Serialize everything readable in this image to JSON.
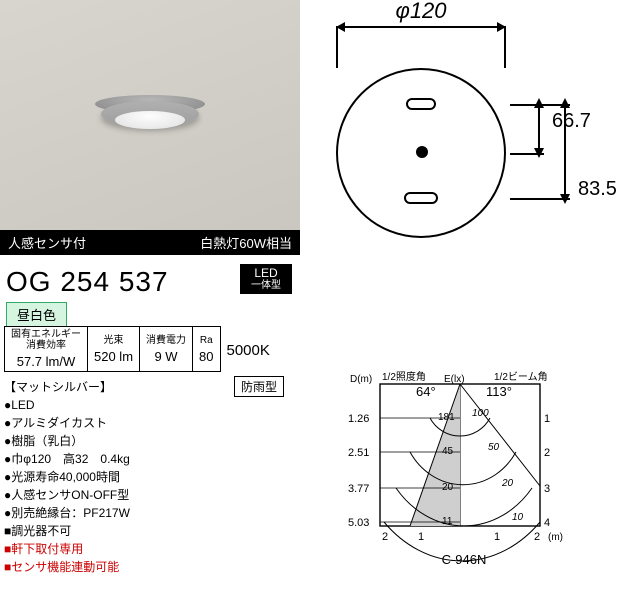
{
  "photo_labels": {
    "sensor": "人感センサ付",
    "equiv": "白熱灯60W相当"
  },
  "model": "OG 254 537",
  "led_badge": {
    "l1": "LED",
    "l2": "一体型"
  },
  "color_temp_chip": "昼白色",
  "diagram": {
    "diameter_label": "φ120",
    "right_top": "66.7",
    "right_bottom": "83.5",
    "diameter_mm": 120
  },
  "spec_table": {
    "cols": [
      {
        "hdr": "固有エネルギー\n消費効率",
        "val": "57.7 lm/W"
      },
      {
        "hdr": "光束",
        "val": "520 lm"
      },
      {
        "hdr": "消費電力",
        "val": "9 W"
      },
      {
        "hdr": "Ra",
        "val": "80"
      },
      {
        "hdr": "",
        "val": "5000K"
      }
    ]
  },
  "material_label": "【マットシルバー】",
  "rainproof": "防雨型",
  "bullets": [
    {
      "text": "LED",
      "color": "#000"
    },
    {
      "text": "アルミダイカスト",
      "color": "#000"
    },
    {
      "text": "樹脂（乳白）",
      "color": "#000"
    },
    {
      "text": "巾φ120　高32　0.4kg",
      "color": "#000"
    },
    {
      "text": "光源寿命40,000時間",
      "color": "#000"
    },
    {
      "text": "人感センサON-OFF型",
      "color": "#000"
    },
    {
      "text": "別売絶縁台：PF217W",
      "color": "#000"
    },
    {
      "text": "調光器不可",
      "color": "#000"
    },
    {
      "text": "軒下取付専用",
      "color": "#c00"
    },
    {
      "text": "センサ機能連動可能",
      "color": "#c00"
    }
  ],
  "polar": {
    "top_left": "1/2照度角",
    "top_right": "1/2ビーム角",
    "angle_left": "64°",
    "angle_right": "113°",
    "y_label": "D(m)",
    "x_label": "E(lx)",
    "y_ticks": [
      "1.26",
      "2.51",
      "3.77",
      "5.03"
    ],
    "e_values": [
      "181",
      "45",
      "20",
      "11"
    ],
    "ring_labels": [
      "100",
      "50",
      "20",
      "10"
    ],
    "right_ticks": [
      "1",
      "2",
      "3",
      "4"
    ],
    "x_ticks": [
      "2",
      "1",
      "1",
      "2"
    ],
    "right_unit": "(m)",
    "caption": "C-946N",
    "colors": {
      "axis": "#000",
      "grid": "#000",
      "cone": "#cfcfcf"
    }
  },
  "colors": {
    "chip_bg": "#000",
    "chip_fg": "#fff",
    "ct_border": "#3ba66b",
    "ct_bg": "#d6f5e0"
  }
}
